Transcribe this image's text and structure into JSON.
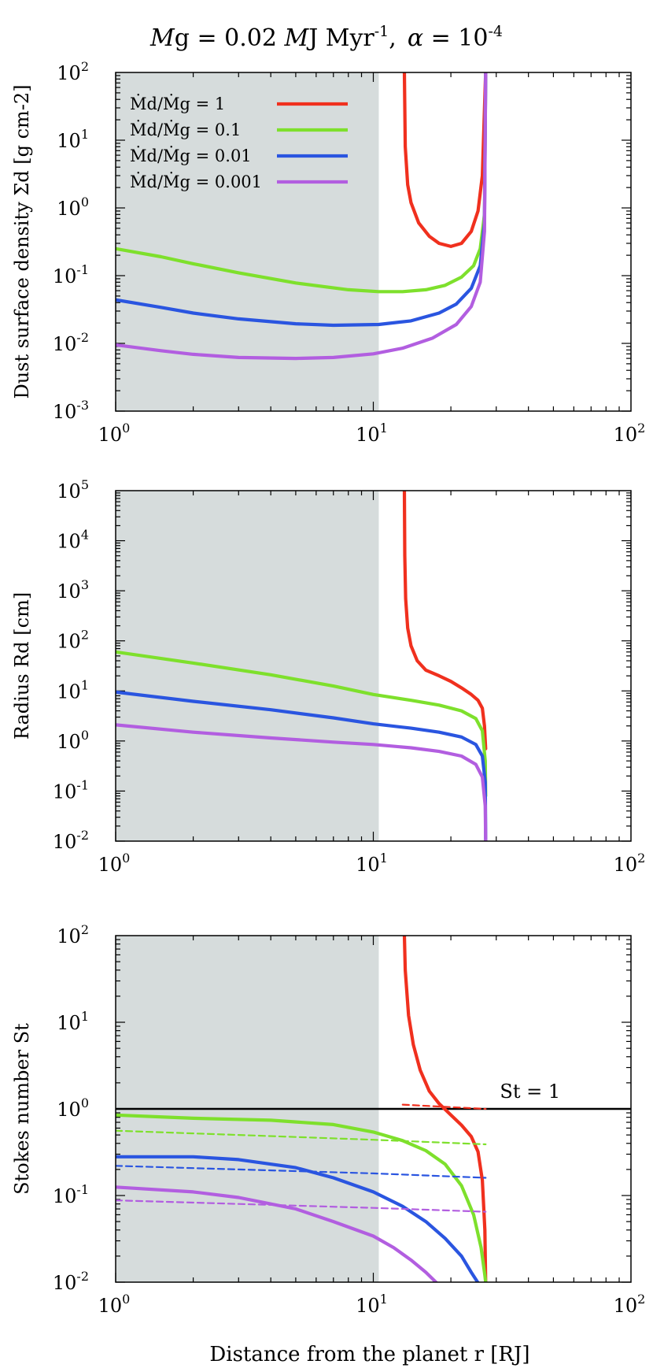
{
  "figure": {
    "title": {
      "mdot": "M",
      "g_sub": "g",
      "eq": " = 0.02 ",
      "mj": "M",
      "j_sub": "J",
      "myr": " Myr",
      "myr_sup": "-1",
      "comma": ",",
      "alpha": "α",
      "alpha_eq": " = 10",
      "alpha_sup": "-4"
    },
    "xlabel": "Distance from the planet r [RJ]",
    "colors": {
      "red": "#f0301e",
      "green": "#7ee02c",
      "blue": "#2a55e0",
      "purple": "#b25ee0",
      "shade": "#d6dcdc"
    },
    "legend": [
      "Ṁd/Ṁg = 1",
      "Ṁd/Ṁg = 0.1",
      "Ṁd/Ṁg = 0.01",
      "Ṁd/Ṁg = 0.001"
    ]
  },
  "chart_data": [
    {
      "type": "line",
      "xscale": "log",
      "yscale": "log",
      "xlim": [
        1,
        100
      ],
      "ylim": [
        0.001,
        100
      ],
      "xticks": [
        "1",
        "10",
        "100"
      ],
      "yticks": [
        "0.001",
        "0.01",
        "0.1",
        "1",
        "10",
        "100"
      ],
      "ylabel": "Dust surface density Σd [g cm-2]",
      "shaded_region": [
        1,
        10.5
      ],
      "legend_position": "top-left",
      "series": [
        {
          "name": "Ṁd/Ṁg = 1",
          "color": "red",
          "x": [
            13.2,
            13.3,
            13.6,
            14.0,
            15.0,
            16.5,
            18.0,
            20.0,
            22.0,
            24.0,
            25.5,
            26.5,
            27.3
          ],
          "y": [
            100,
            8,
            2.2,
            1.2,
            0.6,
            0.38,
            0.3,
            0.27,
            0.3,
            0.45,
            0.9,
            3,
            100
          ]
        },
        {
          "name": "Ṁd/Ṁg = 0.1",
          "color": "green",
          "x": [
            1,
            1.5,
            2,
            3,
            5,
            8,
            10.5,
            13,
            16,
            19,
            22,
            24.5,
            26,
            27,
            27.3
          ],
          "y": [
            0.25,
            0.19,
            0.15,
            0.11,
            0.078,
            0.062,
            0.058,
            0.058,
            0.062,
            0.072,
            0.095,
            0.14,
            0.25,
            0.8,
            100
          ]
        },
        {
          "name": "Ṁd/Ṁg = 0.01",
          "color": "blue",
          "x": [
            1,
            1.5,
            2,
            3,
            5,
            7,
            10.5,
            14,
            18,
            21,
            24,
            26,
            27,
            27.3
          ],
          "y": [
            0.044,
            0.034,
            0.028,
            0.023,
            0.0195,
            0.0185,
            0.019,
            0.0215,
            0.028,
            0.038,
            0.065,
            0.14,
            0.6,
            100
          ]
        },
        {
          "name": "Ṁd/Ṁg = 0.001",
          "color": "purple",
          "x": [
            1,
            1.5,
            2,
            3,
            5,
            7,
            10,
            13,
            17,
            21,
            24,
            26,
            27,
            27.3
          ],
          "y": [
            0.0095,
            0.0078,
            0.0069,
            0.0062,
            0.006,
            0.0062,
            0.007,
            0.0085,
            0.012,
            0.019,
            0.035,
            0.08,
            0.45,
            100
          ]
        }
      ]
    },
    {
      "type": "line",
      "xscale": "log",
      "yscale": "log",
      "xlim": [
        1,
        100
      ],
      "ylim": [
        0.01,
        100000
      ],
      "xticks": [
        "1",
        "10",
        "100"
      ],
      "yticks": [
        "0.01",
        "0.1",
        "1",
        "10",
        "100",
        "1000",
        "10000",
        "100000"
      ],
      "ylabel": "Radius Rd [cm]",
      "shaded_region": [
        1,
        10.5
      ],
      "series": [
        {
          "name": "Ṁd/Ṁg = 1",
          "color": "red",
          "x": [
            13.2,
            13.25,
            13.35,
            13.6,
            14.0,
            14.8,
            16,
            18,
            20,
            22,
            24,
            25.5,
            26.5,
            27,
            27.3
          ],
          "y": [
            100000,
            5000,
            700,
            180,
            80,
            40,
            26,
            20,
            15.5,
            11.5,
            8.5,
            6.5,
            4.5,
            2,
            0.7
          ]
        },
        {
          "name": "Ṁd/Ṁg = 0.1",
          "color": "green",
          "x": [
            1,
            2,
            4,
            7,
            10,
            14,
            18,
            22,
            25,
            26.5,
            27.2,
            27.3
          ],
          "y": [
            60,
            36,
            21,
            12.5,
            8.5,
            6.5,
            5.2,
            4,
            2.8,
            1.6,
            0.4,
            0.08
          ]
        },
        {
          "name": "Ṁd/Ṁg = 0.01",
          "color": "blue",
          "x": [
            1,
            2,
            4,
            7,
            10,
            14,
            18,
            22,
            25,
            26.5,
            27.2,
            27.3
          ],
          "y": [
            9.5,
            6.2,
            4.2,
            2.9,
            2.2,
            1.8,
            1.5,
            1.2,
            0.85,
            0.5,
            0.15,
            0.01
          ]
        },
        {
          "name": "Ṁd/Ṁg = 0.001",
          "color": "purple",
          "x": [
            1,
            2,
            4,
            7,
            10,
            14,
            18,
            22,
            25,
            26.5,
            27.2,
            27.3
          ],
          "y": [
            2.1,
            1.5,
            1.15,
            0.95,
            0.85,
            0.73,
            0.62,
            0.5,
            0.34,
            0.19,
            0.05,
            0.01
          ]
        }
      ]
    },
    {
      "type": "line",
      "xscale": "log",
      "yscale": "log",
      "xlim": [
        1,
        100
      ],
      "ylim": [
        0.01,
        100
      ],
      "xticks": [
        "1",
        "10",
        "100"
      ],
      "yticks": [
        "0.01",
        "0.1",
        "1",
        "10",
        "100"
      ],
      "ylabel": "Stokes number St",
      "shaded_region": [
        1,
        10.5
      ],
      "annotation": "St = 1",
      "reference_line": {
        "y": 1,
        "color": "#000000"
      },
      "series": [
        {
          "name": "Ṁd/Ṁg = 1",
          "color": "red",
          "style": "solid",
          "x": [
            13.2,
            13.3,
            13.7,
            14.3,
            15.2,
            16.5,
            18,
            20,
            22,
            24,
            25.5,
            26.5,
            27.1,
            27.3
          ],
          "y": [
            100,
            40,
            12,
            5.5,
            2.8,
            1.6,
            1.15,
            0.85,
            0.65,
            0.48,
            0.32,
            0.15,
            0.04,
            0.01
          ]
        },
        {
          "name": "Ṁd/Ṁg = 1 (dashed)",
          "color": "red",
          "style": "dashed",
          "x": [
            13,
            27.3
          ],
          "y": [
            1.12,
            1.0
          ]
        },
        {
          "name": "Ṁd/Ṁg = 0.1",
          "color": "green",
          "style": "solid",
          "x": [
            1,
            2,
            4,
            7,
            10,
            13,
            16,
            19,
            22,
            24.5,
            26.2,
            27.1,
            27.3
          ],
          "y": [
            0.85,
            0.78,
            0.74,
            0.66,
            0.54,
            0.43,
            0.33,
            0.23,
            0.13,
            0.06,
            0.025,
            0.012,
            0.01
          ]
        },
        {
          "name": "Ṁd/Ṁg = 0.1 (dashed)",
          "color": "green",
          "style": "dashed",
          "x": [
            1,
            3,
            10,
            27.3
          ],
          "y": [
            0.56,
            0.5,
            0.44,
            0.39
          ]
        },
        {
          "name": "Ṁd/Ṁg = 0.01",
          "color": "blue",
          "style": "solid",
          "x": [
            1,
            2,
            3,
            5,
            7,
            10,
            13,
            16,
            19,
            22,
            24,
            25.4
          ],
          "y": [
            0.28,
            0.28,
            0.26,
            0.21,
            0.16,
            0.11,
            0.075,
            0.05,
            0.032,
            0.02,
            0.013,
            0.01
          ]
        },
        {
          "name": "Ṁd/Ṁg = 0.01 (dashed)",
          "color": "blue",
          "style": "dashed",
          "x": [
            1,
            3,
            10,
            27.3
          ],
          "y": [
            0.22,
            0.2,
            0.18,
            0.16
          ]
        },
        {
          "name": "Ṁd/Ṁg = 0.001",
          "color": "purple",
          "style": "solid",
          "x": [
            1,
            2,
            3,
            5,
            7,
            10,
            12,
            14,
            16,
            17.5
          ],
          "y": [
            0.125,
            0.11,
            0.095,
            0.07,
            0.05,
            0.034,
            0.025,
            0.018,
            0.013,
            0.01
          ]
        },
        {
          "name": "Ṁd/Ṁg = 0.001 (dashed)",
          "color": "purple",
          "style": "dashed",
          "x": [
            1,
            3,
            10,
            27.3
          ],
          "y": [
            0.088,
            0.08,
            0.072,
            0.065
          ]
        }
      ]
    }
  ]
}
